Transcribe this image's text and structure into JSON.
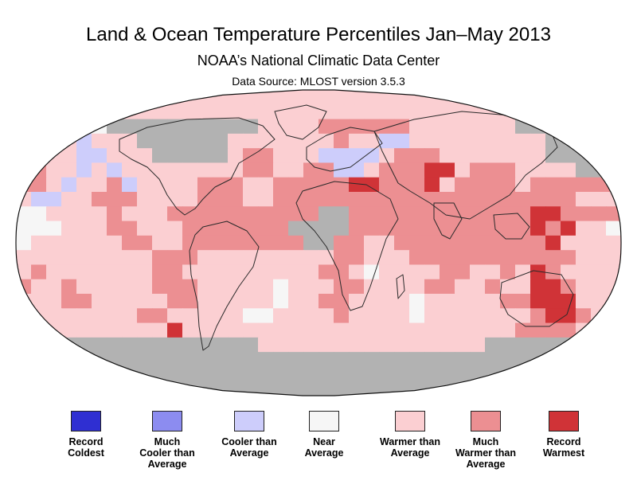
{
  "header": {
    "title": "Land & Ocean Temperature Percentiles Jan–May 2013",
    "subtitle": "NOAA’s National Climatic Data Center",
    "source": "Data Source: MLOST version 3.5.3"
  },
  "map": {
    "projection": "robinson",
    "grid_rows": [
      "",
      "",
      "NNNNNNGGGGGGGGGGWWWWMMMMMMWWWWWWWGGGGGGG",
      "NNWWCWWWGGGGGGWWWWWWWMWWCCWWWWWWWWWGGGGG",
      "MMWWCCWWWGGGGGWMMWWWCCCCWMMMWWWWWWWGGGGG",
      "MMWWCWCWWWWWWWWMMWWMMCCWMMMRRWMMMWWWWGGG",
      "MMWCWWMCWWWWMMMWWMMMMMRRMMMRWMMMMWMMMMMM",
      "WCCWWMMMWWWWMMMWWMMMMMMMMMMMMMMMMMMMMWWW",
      "NNWWWWMWWWMMMMMMMMMMGGMMMMMMMMMMMMRRMMMM",
      "NNNWWWMMWWWMMMMMMMGGGGMMMMMMMMMMMMRMRWWN",
      "NWWWWWWMMWWMMMMMMMMGGMMWWMMMMMMMMMMRWWWW",
      "WWWWWWWWWMMMWWWWWWWWWMMWWWMMMMMMMMMMMWWW",
      "WMWWWWWWWMMWWWWWWWWWMMWNWWWWMMWWMWRMWWWW",
      "MWWMWWWWWMMMWWWWWNWWWMMWWWWMMWWMWWRRMWWW",
      "WWWMMWWWWWMMWWWWWNWWMMWWWWNWWWWWMMRRRWWW",
      "WWWWWWWWMMWWWWWNNWWWWMWWWWNWWWWWWWMRRMWW",
      "WMWWWWWWWWRWWWWWWWWWWWWWWWWWWWWWWMMMMWWW",
      "GGGGGGGGGGGGGGGGWWWWWWWWWWWWWWWGGGGGGGGG",
      "GGGGGGGGGGGGGGGGGGGGGGGGGGGGGGGGGGGGGGGG",
      "GGGGGGGGGGGGGGGGGGGGGGGGGGGGGGGGGGGGGGGG",
      "GGGGGGGGGGGGGGGGGGGGGGGGGGGGGGGGGGGGGGGG"
    ]
  },
  "colors": {
    "N": "#f6f6f6",
    "W": "#fbcfd2",
    "M": "#ec8f92",
    "R": "#d03337",
    "C": "#cdcdfb",
    "G": "#b2b2b2",
    "outline": "#111111",
    "land_border": "#2a2a2a"
  },
  "legend": [
    {
      "label": "Record\nColdest",
      "color": "#2f2fd2"
    },
    {
      "label": "Much\nCooler than\nAverage",
      "color": "#8c8cf0"
    },
    {
      "label": "Cooler than\nAverage",
      "color": "#cdcdfb"
    },
    {
      "label": "Near\nAverage",
      "color": "#f6f6f6"
    },
    {
      "label": "Warmer than\nAverage",
      "color": "#fbcfd2"
    },
    {
      "label": "Much\nWarmer than\nAverage",
      "color": "#ec8f92"
    },
    {
      "label": "Record\nWarmest",
      "color": "#d03337"
    }
  ]
}
